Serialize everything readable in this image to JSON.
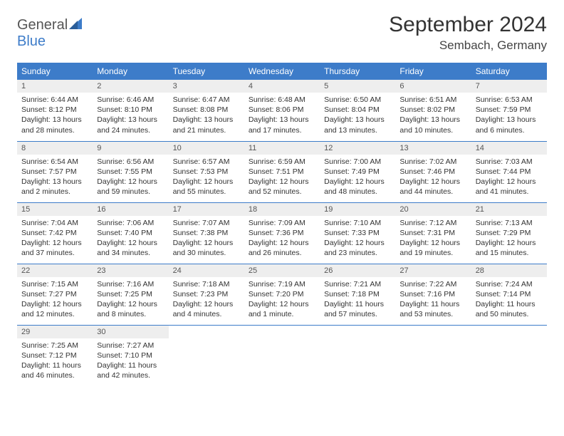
{
  "brand": {
    "word1": "General",
    "word2": "Blue",
    "sail_color": "#3d7cc9"
  },
  "title": "September 2024",
  "location": "Sembach, Germany",
  "colors": {
    "header_bg": "#3d7cc9",
    "header_fg": "#ffffff",
    "daynum_bg": "#eeeeee",
    "rule": "#3d7cc9"
  },
  "day_headers": [
    "Sunday",
    "Monday",
    "Tuesday",
    "Wednesday",
    "Thursday",
    "Friday",
    "Saturday"
  ],
  "days": [
    {
      "n": "1",
      "sr": "Sunrise: 6:44 AM",
      "ss": "Sunset: 8:12 PM",
      "d1": "Daylight: 13 hours",
      "d2": "and 28 minutes."
    },
    {
      "n": "2",
      "sr": "Sunrise: 6:46 AM",
      "ss": "Sunset: 8:10 PM",
      "d1": "Daylight: 13 hours",
      "d2": "and 24 minutes."
    },
    {
      "n": "3",
      "sr": "Sunrise: 6:47 AM",
      "ss": "Sunset: 8:08 PM",
      "d1": "Daylight: 13 hours",
      "d2": "and 21 minutes."
    },
    {
      "n": "4",
      "sr": "Sunrise: 6:48 AM",
      "ss": "Sunset: 8:06 PM",
      "d1": "Daylight: 13 hours",
      "d2": "and 17 minutes."
    },
    {
      "n": "5",
      "sr": "Sunrise: 6:50 AM",
      "ss": "Sunset: 8:04 PM",
      "d1": "Daylight: 13 hours",
      "d2": "and 13 minutes."
    },
    {
      "n": "6",
      "sr": "Sunrise: 6:51 AM",
      "ss": "Sunset: 8:02 PM",
      "d1": "Daylight: 13 hours",
      "d2": "and 10 minutes."
    },
    {
      "n": "7",
      "sr": "Sunrise: 6:53 AM",
      "ss": "Sunset: 7:59 PM",
      "d1": "Daylight: 13 hours",
      "d2": "and 6 minutes."
    },
    {
      "n": "8",
      "sr": "Sunrise: 6:54 AM",
      "ss": "Sunset: 7:57 PM",
      "d1": "Daylight: 13 hours",
      "d2": "and 2 minutes."
    },
    {
      "n": "9",
      "sr": "Sunrise: 6:56 AM",
      "ss": "Sunset: 7:55 PM",
      "d1": "Daylight: 12 hours",
      "d2": "and 59 minutes."
    },
    {
      "n": "10",
      "sr": "Sunrise: 6:57 AM",
      "ss": "Sunset: 7:53 PM",
      "d1": "Daylight: 12 hours",
      "d2": "and 55 minutes."
    },
    {
      "n": "11",
      "sr": "Sunrise: 6:59 AM",
      "ss": "Sunset: 7:51 PM",
      "d1": "Daylight: 12 hours",
      "d2": "and 52 minutes."
    },
    {
      "n": "12",
      "sr": "Sunrise: 7:00 AM",
      "ss": "Sunset: 7:49 PM",
      "d1": "Daylight: 12 hours",
      "d2": "and 48 minutes."
    },
    {
      "n": "13",
      "sr": "Sunrise: 7:02 AM",
      "ss": "Sunset: 7:46 PM",
      "d1": "Daylight: 12 hours",
      "d2": "and 44 minutes."
    },
    {
      "n": "14",
      "sr": "Sunrise: 7:03 AM",
      "ss": "Sunset: 7:44 PM",
      "d1": "Daylight: 12 hours",
      "d2": "and 41 minutes."
    },
    {
      "n": "15",
      "sr": "Sunrise: 7:04 AM",
      "ss": "Sunset: 7:42 PM",
      "d1": "Daylight: 12 hours",
      "d2": "and 37 minutes."
    },
    {
      "n": "16",
      "sr": "Sunrise: 7:06 AM",
      "ss": "Sunset: 7:40 PM",
      "d1": "Daylight: 12 hours",
      "d2": "and 34 minutes."
    },
    {
      "n": "17",
      "sr": "Sunrise: 7:07 AM",
      "ss": "Sunset: 7:38 PM",
      "d1": "Daylight: 12 hours",
      "d2": "and 30 minutes."
    },
    {
      "n": "18",
      "sr": "Sunrise: 7:09 AM",
      "ss": "Sunset: 7:36 PM",
      "d1": "Daylight: 12 hours",
      "d2": "and 26 minutes."
    },
    {
      "n": "19",
      "sr": "Sunrise: 7:10 AM",
      "ss": "Sunset: 7:33 PM",
      "d1": "Daylight: 12 hours",
      "d2": "and 23 minutes."
    },
    {
      "n": "20",
      "sr": "Sunrise: 7:12 AM",
      "ss": "Sunset: 7:31 PM",
      "d1": "Daylight: 12 hours",
      "d2": "and 19 minutes."
    },
    {
      "n": "21",
      "sr": "Sunrise: 7:13 AM",
      "ss": "Sunset: 7:29 PM",
      "d1": "Daylight: 12 hours",
      "d2": "and 15 minutes."
    },
    {
      "n": "22",
      "sr": "Sunrise: 7:15 AM",
      "ss": "Sunset: 7:27 PM",
      "d1": "Daylight: 12 hours",
      "d2": "and 12 minutes."
    },
    {
      "n": "23",
      "sr": "Sunrise: 7:16 AM",
      "ss": "Sunset: 7:25 PM",
      "d1": "Daylight: 12 hours",
      "d2": "and 8 minutes."
    },
    {
      "n": "24",
      "sr": "Sunrise: 7:18 AM",
      "ss": "Sunset: 7:23 PM",
      "d1": "Daylight: 12 hours",
      "d2": "and 4 minutes."
    },
    {
      "n": "25",
      "sr": "Sunrise: 7:19 AM",
      "ss": "Sunset: 7:20 PM",
      "d1": "Daylight: 12 hours",
      "d2": "and 1 minute."
    },
    {
      "n": "26",
      "sr": "Sunrise: 7:21 AM",
      "ss": "Sunset: 7:18 PM",
      "d1": "Daylight: 11 hours",
      "d2": "and 57 minutes."
    },
    {
      "n": "27",
      "sr": "Sunrise: 7:22 AM",
      "ss": "Sunset: 7:16 PM",
      "d1": "Daylight: 11 hours",
      "d2": "and 53 minutes."
    },
    {
      "n": "28",
      "sr": "Sunrise: 7:24 AM",
      "ss": "Sunset: 7:14 PM",
      "d1": "Daylight: 11 hours",
      "d2": "and 50 minutes."
    },
    {
      "n": "29",
      "sr": "Sunrise: 7:25 AM",
      "ss": "Sunset: 7:12 PM",
      "d1": "Daylight: 11 hours",
      "d2": "and 46 minutes."
    },
    {
      "n": "30",
      "sr": "Sunrise: 7:27 AM",
      "ss": "Sunset: 7:10 PM",
      "d1": "Daylight: 11 hours",
      "d2": "and 42 minutes."
    }
  ]
}
